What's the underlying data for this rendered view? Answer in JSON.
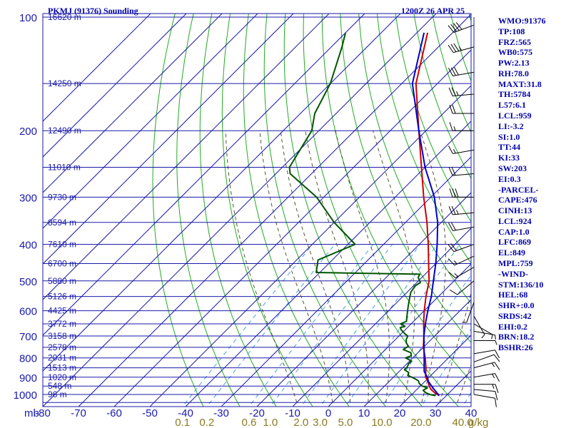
{
  "header": {
    "station_title": "PKMJ (91376) Sounding",
    "time_label": "1200Z 26 APR 25"
  },
  "params": [
    "WMO:91376",
    "TP:108",
    "FRZ:565",
    "WB0:575",
    "PW:2.13",
    "RH:78.0",
    "MAXT:31.8",
    "TH:5784",
    "L57:6.1",
    "LCL:959",
    "LI:-3.2",
    "SI:1.0",
    "TT:44",
    "KI:33",
    "SW:203",
    "EI:0.3",
    "-PARCEL-",
    "CAPE:476",
    "CINH:13",
    "LCL:924",
    "CAP:1.0",
    "LFC:869",
    "EL:849",
    "MPL:759",
    "-WIND-",
    "STM:136/10",
    "HEL:68",
    "SHR+:0.0",
    "SRDS:42",
    "EHI:0.2",
    "BRN:18.2",
    "BSHR:26"
  ],
  "colors": {
    "isobar": "#1a1aaa",
    "isotherm": "#1a1aaa",
    "dry_adiabat": "#22aa22",
    "moist_adiabat": "#555533",
    "mixing_ratio": "#4aa0e0",
    "temperature": "#cc0000",
    "dewpoint": "#005500",
    "parcel": "#0000cc",
    "wind_barb": "#000000"
  },
  "chart_data": {
    "type": "skew-t",
    "axis_unit_label": "mb",
    "pressure_ticks": [
      100,
      200,
      300,
      400,
      500,
      600,
      700,
      800,
      900,
      1000
    ],
    "pressure_labels": [
      "100",
      "200",
      "300",
      "400",
      "500",
      "600",
      "700",
      "800",
      "900",
      "1000"
    ],
    "temperature_ticks": [
      -80,
      -70,
      -60,
      -50,
      -40,
      -30,
      -20,
      -10,
      0,
      10,
      20,
      30,
      40
    ],
    "temperature_labels": [
      "-80",
      "-70",
      "-60",
      "-50",
      "-40",
      "-30",
      "-20",
      "-10",
      "0",
      "10",
      "20",
      "30",
      "40"
    ],
    "plim_mb": [
      100,
      1050
    ],
    "tlim_c": [
      -80,
      40
    ],
    "mixing_ratio_g_per_kg": [
      0.1,
      0.2,
      0.6,
      1.0,
      2.0,
      3.0,
      5.0,
      10.0,
      20.0,
      40.0
    ],
    "mixing_ratio_labels": [
      "0.1",
      "0.2",
      "0.6",
      "1.0",
      "2.0",
      "3.0",
      "5.0",
      "10.0",
      "20.0",
      "40.0"
    ],
    "mixing_ratio_unit": "g/kg",
    "heights": [
      {
        "p": 100,
        "label": "16620 m"
      },
      {
        "p": 150,
        "label": "14250 m"
      },
      {
        "p": 200,
        "label": "12490 m"
      },
      {
        "p": 250,
        "label": "11010 m"
      },
      {
        "p": 300,
        "label": "9730 m"
      },
      {
        "p": 350,
        "label": "8594 m"
      },
      {
        "p": 400,
        "label": "7610 m"
      },
      {
        "p": 450,
        "label": "6700 m"
      },
      {
        "p": 500,
        "label": "5880 m"
      },
      {
        "p": 550,
        "label": "5126 m"
      },
      {
        "p": 600,
        "label": "4425 m"
      },
      {
        "p": 650,
        "label": "3772 m"
      },
      {
        "p": 700,
        "label": "3158 m"
      },
      {
        "p": 750,
        "label": "2578 m"
      },
      {
        "p": 800,
        "label": "2031 m"
      },
      {
        "p": 850,
        "label": "1513 m"
      },
      {
        "p": 900,
        "label": "1020 m"
      },
      {
        "p": 950,
        "label": "548 m"
      },
      {
        "p": 1000,
        "label": "96 m"
      }
    ],
    "series": [
      {
        "name": "temperature",
        "points": [
          [
            1007,
            28
          ],
          [
            990,
            26
          ],
          [
            970,
            24
          ],
          [
            950,
            22.5
          ],
          [
            925,
            21
          ],
          [
            900,
            19
          ],
          [
            870,
            17.5
          ],
          [
            850,
            16.5
          ],
          [
            800,
            13.5
          ],
          [
            750,
            10
          ],
          [
            700,
            7
          ],
          [
            650,
            3.5
          ],
          [
            600,
            0
          ],
          [
            550,
            -3.5
          ],
          [
            500,
            -7
          ],
          [
            450,
            -12
          ],
          [
            400,
            -17.5
          ],
          [
            350,
            -24
          ],
          [
            300,
            -32
          ],
          [
            250,
            -41
          ],
          [
            200,
            -52
          ],
          [
            150,
            -66
          ],
          [
            110,
            -77
          ]
        ]
      },
      {
        "name": "dewpoint",
        "points": [
          [
            1007,
            27
          ],
          [
            1000,
            25
          ],
          [
            990,
            23.5
          ],
          [
            975,
            22
          ],
          [
            960,
            22.5
          ],
          [
            950,
            20.5
          ],
          [
            935,
            19
          ],
          [
            920,
            18
          ],
          [
            905,
            16
          ],
          [
            890,
            13.5
          ],
          [
            875,
            13
          ],
          [
            860,
            11
          ],
          [
            845,
            11
          ],
          [
            830,
            10.5
          ],
          [
            815,
            10.5
          ],
          [
            800,
            8
          ],
          [
            790,
            9
          ],
          [
            775,
            8
          ],
          [
            760,
            5
          ],
          [
            745,
            5.5
          ],
          [
            730,
            4
          ],
          [
            715,
            3
          ],
          [
            700,
            2.5
          ],
          [
            690,
            1
          ],
          [
            675,
            -1
          ],
          [
            665,
            -2
          ],
          [
            660,
            -1
          ],
          [
            650,
            -3
          ],
          [
            640,
            -2
          ],
          [
            625,
            -3
          ],
          [
            610,
            -4
          ],
          [
            595,
            -5
          ],
          [
            580,
            -6
          ],
          [
            565,
            -7
          ],
          [
            550,
            -8
          ],
          [
            535,
            -9
          ],
          [
            515,
            -9.5
          ],
          [
            505,
            -9
          ],
          [
            490,
            -11
          ],
          [
            480,
            -11.5
          ],
          [
            475,
            -41
          ],
          [
            440,
            -44
          ],
          [
            400,
            -38
          ],
          [
            350,
            -50
          ],
          [
            300,
            -62
          ],
          [
            260,
            -76
          ],
          [
            250,
            -78
          ],
          [
            200,
            -82
          ],
          [
            180,
            -86
          ],
          [
            150,
            -90
          ],
          [
            120,
            -97
          ],
          [
            110,
            -100
          ]
        ]
      },
      {
        "name": "parcel",
        "points": [
          [
            1007,
            28
          ],
          [
            960,
            24
          ],
          [
            924,
            21
          ],
          [
            900,
            19.5
          ],
          [
            869,
            17
          ],
          [
            850,
            16
          ],
          [
            800,
            13.2
          ],
          [
            750,
            10.2
          ],
          [
            700,
            7
          ],
          [
            650,
            4
          ],
          [
            600,
            1
          ],
          [
            550,
            -2
          ],
          [
            500,
            -5.8
          ],
          [
            450,
            -10
          ],
          [
            400,
            -15
          ],
          [
            350,
            -21
          ],
          [
            300,
            -29
          ],
          [
            250,
            -40
          ],
          [
            200,
            -52
          ],
          [
            150,
            -67
          ],
          [
            110,
            -78
          ]
        ]
      }
    ],
    "wind_barbs": [
      {
        "p": 105,
        "dir": 250,
        "spd": 40
      },
      {
        "p": 120,
        "dir": 255,
        "spd": 35
      },
      {
        "p": 140,
        "dir": 260,
        "spd": 30
      },
      {
        "p": 160,
        "dir": 265,
        "spd": 25
      },
      {
        "p": 180,
        "dir": 270,
        "spd": 20
      },
      {
        "p": 200,
        "dir": 270,
        "spd": 15
      },
      {
        "p": 225,
        "dir": 260,
        "spd": 15
      },
      {
        "p": 260,
        "dir": 265,
        "spd": 20
      },
      {
        "p": 300,
        "dir": 270,
        "spd": 30
      },
      {
        "p": 330,
        "dir": 265,
        "spd": 25
      },
      {
        "p": 360,
        "dir": 260,
        "spd": 20
      },
      {
        "p": 400,
        "dir": 250,
        "spd": 20
      },
      {
        "p": 430,
        "dir": 245,
        "spd": 15
      },
      {
        "p": 460,
        "dir": 240,
        "spd": 15
      },
      {
        "p": 500,
        "dir": 230,
        "spd": 10
      },
      {
        "p": 570,
        "dir": 200,
        "spd": 5
      },
      {
        "p": 620,
        "dir": 150,
        "spd": 5
      },
      {
        "p": 650,
        "dir": 120,
        "spd": 5
      },
      {
        "p": 680,
        "dir": 100,
        "spd": 5
      },
      {
        "p": 720,
        "dir": 90,
        "spd": 5
      },
      {
        "p": 780,
        "dir": 80,
        "spd": 10
      },
      {
        "p": 820,
        "dir": 70,
        "spd": 10
      },
      {
        "p": 850,
        "dir": 75,
        "spd": 15
      },
      {
        "p": 900,
        "dir": 80,
        "spd": 15
      },
      {
        "p": 940,
        "dir": 90,
        "spd": 15
      },
      {
        "p": 970,
        "dir": 95,
        "spd": 10
      },
      {
        "p": 1000,
        "dir": 100,
        "spd": 10
      }
    ]
  }
}
